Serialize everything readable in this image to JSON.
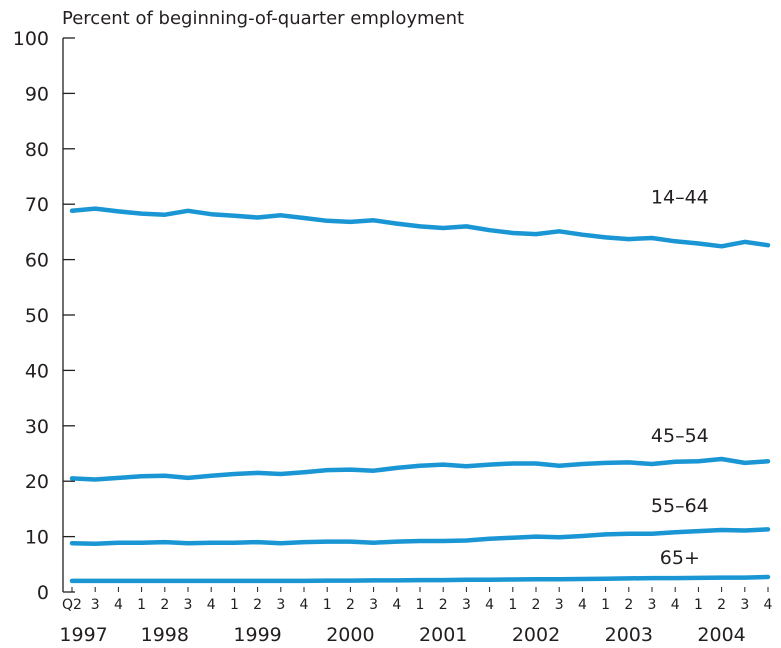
{
  "chart_data": {
    "type": "line",
    "title": "",
    "ylabel": "Percent of beginning-of-quarter employment",
    "xlabel": "",
    "ylim": [
      0,
      100
    ],
    "yticks": [
      0,
      10,
      20,
      30,
      40,
      50,
      60,
      70,
      80,
      90,
      100
    ],
    "grid": false,
    "quarter_labels": [
      "Q2",
      "3",
      "4",
      "1",
      "2",
      "3",
      "4",
      "1",
      "2",
      "3",
      "4",
      "1",
      "2",
      "3",
      "4",
      "1",
      "2",
      "3",
      "4",
      "1",
      "2",
      "3",
      "4",
      "1",
      "2",
      "3",
      "4",
      "1",
      "2",
      "3",
      "4"
    ],
    "years": [
      {
        "label": "1997",
        "index": 0.5
      },
      {
        "label": "1998",
        "index": 4
      },
      {
        "label": "1999",
        "index": 8
      },
      {
        "label": "2000",
        "index": 12
      },
      {
        "label": "2001",
        "index": 16
      },
      {
        "label": "2002",
        "index": 20
      },
      {
        "label": "2003",
        "index": 24
      },
      {
        "label": "2004",
        "index": 28
      }
    ],
    "series": [
      {
        "name": "14–44",
        "color": "#1a96d4",
        "values": [
          68.8,
          69.2,
          68.7,
          68.3,
          68.1,
          68.8,
          68.2,
          67.9,
          67.6,
          68.0,
          67.5,
          67.0,
          66.8,
          67.1,
          66.5,
          66.0,
          65.7,
          66.0,
          65.3,
          64.8,
          64.6,
          65.1,
          64.5,
          64.0,
          63.7,
          63.9,
          63.3,
          62.9,
          62.4,
          63.2,
          62.6
        ]
      },
      {
        "name": "45–54",
        "color": "#1a96d4",
        "values": [
          20.5,
          20.3,
          20.6,
          20.9,
          21.0,
          20.6,
          21.0,
          21.3,
          21.5,
          21.3,
          21.6,
          22.0,
          22.1,
          21.9,
          22.4,
          22.8,
          23.0,
          22.7,
          23.0,
          23.2,
          23.2,
          22.8,
          23.1,
          23.3,
          23.4,
          23.1,
          23.5,
          23.6,
          24.0,
          23.3,
          23.6
        ]
      },
      {
        "name": "55–64",
        "color": "#1a96d4",
        "values": [
          8.8,
          8.7,
          8.9,
          8.9,
          9.0,
          8.8,
          8.9,
          8.9,
          9.0,
          8.8,
          9.0,
          9.1,
          9.1,
          8.9,
          9.1,
          9.2,
          9.2,
          9.3,
          9.6,
          9.8,
          10.0,
          9.9,
          10.1,
          10.4,
          10.5,
          10.5,
          10.8,
          11.0,
          11.2,
          11.1,
          11.3
        ]
      },
      {
        "name": "65+",
        "color": "#1a96d4",
        "values": [
          2.0,
          2.0,
          2.0,
          2.0,
          2.0,
          2.0,
          2.0,
          2.0,
          2.0,
          2.0,
          2.0,
          2.05,
          2.05,
          2.1,
          2.1,
          2.15,
          2.15,
          2.2,
          2.2,
          2.25,
          2.3,
          2.3,
          2.35,
          2.4,
          2.45,
          2.5,
          2.5,
          2.55,
          2.6,
          2.6,
          2.7
        ]
      }
    ]
  }
}
